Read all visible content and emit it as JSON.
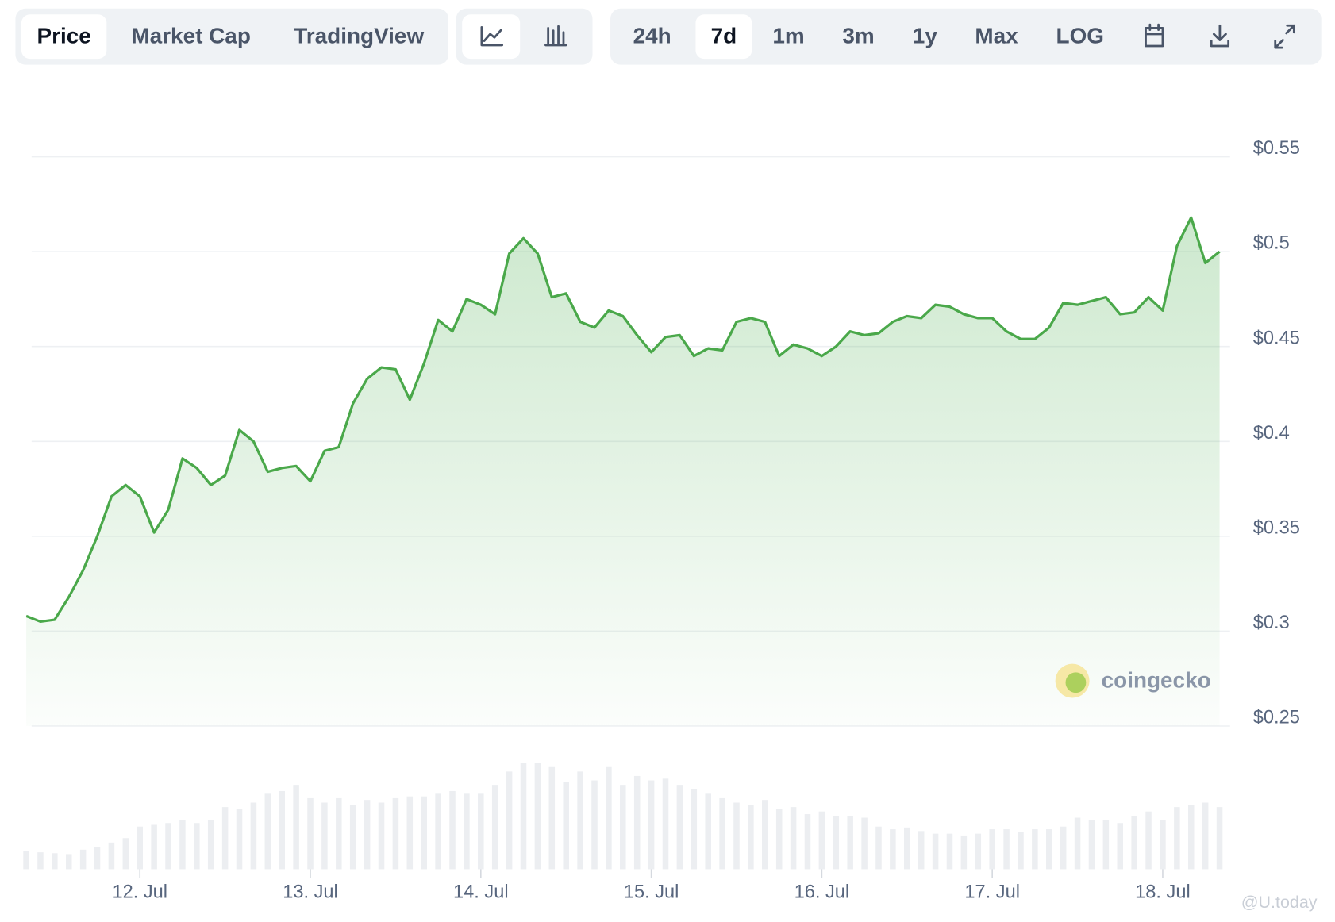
{
  "toolbar": {
    "views": [
      "Price",
      "Market Cap",
      "TradingView"
    ],
    "ranges": [
      "24h",
      "7d",
      "1m",
      "3m",
      "1y",
      "Max",
      "LOG"
    ]
  },
  "watermark": "coingecko",
  "source_watermark": "@U.today",
  "chart_data": {
    "type": "area",
    "color": "#4aa84a",
    "volume_color": "#eceef1",
    "grid": true,
    "ylim": [
      0.25,
      0.55
    ],
    "yticks": [
      {
        "value": 0.25,
        "label": "$0.25"
      },
      {
        "value": 0.3,
        "label": "$0.3"
      },
      {
        "value": 0.35,
        "label": "$0.35"
      },
      {
        "value": 0.4,
        "label": "$0.4"
      },
      {
        "value": 0.45,
        "label": "$0.45"
      },
      {
        "value": 0.5,
        "label": "$0.5"
      },
      {
        "value": 0.55,
        "label": "$0.55"
      }
    ],
    "categories": [
      null,
      null,
      null,
      null,
      null,
      null,
      null,
      null,
      "12. Jul",
      null,
      null,
      null,
      null,
      null,
      null,
      null,
      null,
      null,
      null,
      null,
      "13. Jul",
      null,
      null,
      null,
      null,
      null,
      null,
      null,
      null,
      null,
      null,
      null,
      "14. Jul",
      null,
      null,
      null,
      null,
      null,
      null,
      null,
      null,
      null,
      null,
      null,
      "15. Jul",
      null,
      null,
      null,
      null,
      null,
      null,
      null,
      null,
      null,
      null,
      null,
      "16. Jul",
      null,
      null,
      null,
      null,
      null,
      null,
      null,
      null,
      null,
      null,
      null,
      "17. Jul",
      null,
      null,
      null,
      null,
      null,
      null,
      null,
      null,
      null,
      null,
      null,
      "18. Jul",
      null,
      null,
      null,
      null
    ],
    "values": [
      0.308,
      0.305,
      0.306,
      0.318,
      0.332,
      0.35,
      0.371,
      0.377,
      0.371,
      0.352,
      0.364,
      0.391,
      0.386,
      0.377,
      0.382,
      0.406,
      0.4,
      0.384,
      0.386,
      0.387,
      0.379,
      0.395,
      0.397,
      0.42,
      0.433,
      0.439,
      0.438,
      0.422,
      0.441,
      0.464,
      0.458,
      0.475,
      0.472,
      0.467,
      0.499,
      0.507,
      0.499,
      0.476,
      0.478,
      0.463,
      0.46,
      0.469,
      0.466,
      0.456,
      0.447,
      0.455,
      0.456,
      0.445,
      0.449,
      0.448,
      0.463,
      0.465,
      0.463,
      0.445,
      0.451,
      0.449,
      0.445,
      0.45,
      0.458,
      0.456,
      0.457,
      0.463,
      0.466,
      0.465,
      0.472,
      0.471,
      0.467,
      0.465,
      0.465,
      0.458,
      0.454,
      0.454,
      0.46,
      0.473,
      0.472,
      0.474,
      0.476,
      0.467,
      0.468,
      0.476,
      0.469,
      0.503,
      0.518,
      0.494,
      0.5
    ],
    "volumes": [
      20,
      19,
      18,
      17,
      22,
      25,
      30,
      35,
      48,
      50,
      52,
      55,
      52,
      55,
      70,
      68,
      75,
      85,
      88,
      95,
      80,
      75,
      80,
      72,
      78,
      75,
      80,
      82,
      82,
      85,
      88,
      85,
      85,
      95,
      110,
      120,
      120,
      115,
      98,
      110,
      100,
      115,
      95,
      105,
      100,
      102,
      95,
      90,
      85,
      80,
      75,
      72,
      78,
      68,
      70,
      62,
      65,
      60,
      60,
      58,
      48,
      45,
      47,
      43,
      40,
      40,
      38,
      40,
      45,
      45,
      42,
      45,
      45,
      48,
      58,
      55,
      55,
      52,
      60,
      65,
      55,
      70,
      72,
      75,
      70
    ]
  }
}
